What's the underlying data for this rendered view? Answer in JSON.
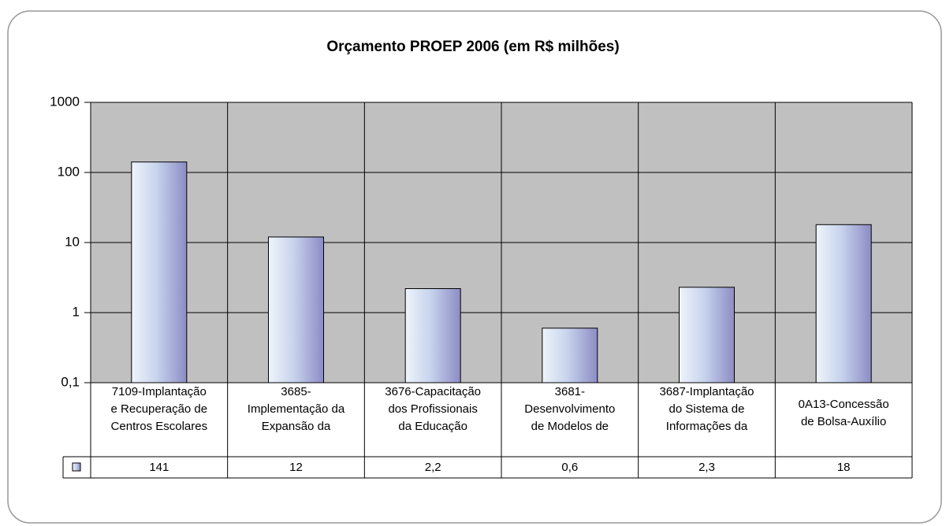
{
  "chart_data": {
    "type": "bar",
    "title": "Orçamento PROEP 2006 (em R$ milhões)",
    "categories": [
      "7109-Implantação\ne Recuperação de\nCentros Escolares",
      "3685-\nImplementação da\nExpansão da",
      "3676-Capacitação\ndos Profissionais\nda Educação",
      "3681-\nDesenvolvimento\nde Modelos de",
      "3687-Implantação\ndo Sistema de\nInformações da",
      "0A13-Concessão\nde Bolsa-Auxílio"
    ],
    "values": [
      141,
      12,
      2.2,
      0.6,
      2.3,
      18
    ],
    "value_labels": [
      "141",
      "12",
      "2,2",
      "0,6",
      "2,3",
      "18"
    ],
    "color": "#c8d4ee",
    "ylim": [
      0.1,
      1000
    ],
    "yticks": [
      {
        "value": 0.1,
        "label": "0,1"
      },
      1,
      10,
      100,
      1000
    ],
    "log_scale": true,
    "grid": true
  }
}
